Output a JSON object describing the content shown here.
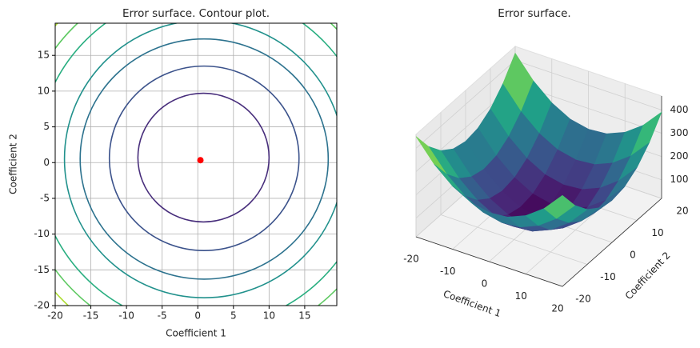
{
  "chart_data": [
    {
      "type": "contour",
      "title": "Error surface. Contour plot.",
      "xlabel": "Coefficient 1",
      "ylabel": "Coefficient 2",
      "xlim": [
        -20,
        19.5
      ],
      "ylim": [
        -20,
        19.5
      ],
      "xticks": [
        -20,
        -15,
        -10,
        -5,
        0,
        5,
        10,
        15
      ],
      "yticks": [
        -20,
        -15,
        -10,
        -5,
        0,
        5,
        10,
        15
      ],
      "grid": true,
      "contours": [
        {
          "cx": 0.8,
          "cy": 0.7,
          "rx": 9.2,
          "ry": 9.0,
          "color": "#472d7b"
        },
        {
          "cx": 0.9,
          "cy": 0.6,
          "rx": 13.3,
          "ry": 12.9,
          "color": "#3b528b"
        },
        {
          "cx": 0.9,
          "cy": 0.5,
          "rx": 17.4,
          "ry": 16.8,
          "color": "#2c728e"
        },
        {
          "cx": 0.9,
          "cy": 0.5,
          "rx": 19.6,
          "ry": 19.4,
          "color": "#21918c"
        },
        {
          "cx": 0.9,
          "cy": 0.5,
          "rx": 23.5,
          "ry": 23.5,
          "color": "#28ae80"
        },
        {
          "cx": 0.9,
          "cy": 0.5,
          "rx": 26,
          "ry": 26,
          "color": "#5ec962"
        },
        {
          "cx": 0.9,
          "cy": 0.5,
          "rx": 28,
          "ry": 28,
          "color": "#addc30"
        }
      ],
      "point": {
        "x": 0.37,
        "y": 0.34,
        "color": "#ff0000"
      }
    },
    {
      "type": "surface",
      "title": "Error surface.",
      "xlabel": "Coefficient 1",
      "ylabel": "Coefficient 2",
      "colormap": "viridis",
      "xlim": [
        -20,
        20
      ],
      "ylim": [
        -20,
        20
      ],
      "zlim": [
        20,
        460
      ],
      "xticks": [
        -20,
        -10,
        0,
        10,
        20
      ],
      "yticks": [
        -20,
        -10,
        0,
        10,
        20
      ],
      "zticks": [
        100,
        200,
        300,
        400
      ],
      "x": [
        -20,
        -15,
        -10,
        -5,
        0,
        5,
        10,
        15,
        20
      ],
      "y": [
        -20,
        -15,
        -10,
        -5,
        0,
        5,
        10,
        15,
        20
      ],
      "z": [
        [
          451,
          358,
          291,
          248,
          231,
          238,
          271,
          328,
          411
        ],
        [
          361,
          268,
          201,
          158,
          141,
          148,
          181,
          238,
          321
        ],
        [
          296,
          203,
          136,
          93,
          76,
          83,
          116,
          173,
          256
        ],
        [
          256,
          163,
          96,
          53,
          36,
          43,
          76,
          133,
          216
        ],
        [
          241,
          148,
          81,
          38,
          21,
          28,
          61,
          118,
          201
        ],
        [
          251,
          158,
          91,
          48,
          31,
          38,
          71,
          128,
          211
        ],
        [
          286,
          193,
          126,
          83,
          66,
          73,
          106,
          163,
          246
        ],
        [
          346,
          253,
          186,
          143,
          126,
          133,
          166,
          223,
          306
        ],
        [
          431,
          338,
          271,
          228,
          211,
          218,
          251,
          308,
          391
        ]
      ]
    }
  ]
}
